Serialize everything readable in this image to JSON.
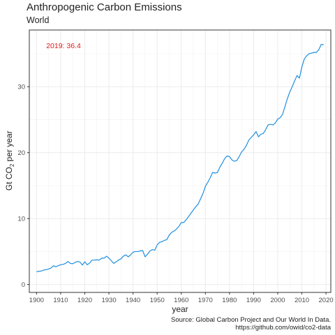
{
  "chart_data": {
    "type": "line",
    "title": "Anthropogenic Carbon Emissions",
    "subtitle": "World",
    "xlabel": "year",
    "ylabel_main": "Gt CO",
    "ylabel_sub": "2",
    "ylabel_rest": " per year",
    "xlim": [
      1897,
      2022
    ],
    "ylim": [
      -1.2,
      38.6
    ],
    "x_ticks": [
      1900,
      1910,
      1920,
      1930,
      1940,
      1950,
      1960,
      1970,
      1980,
      1990,
      2000,
      2010,
      2020
    ],
    "y_ticks": [
      0,
      10,
      20,
      30
    ],
    "grid": true,
    "line_color": "#1f8fe0",
    "annotation": {
      "text": "2019: 36.4",
      "x": 1904,
      "y": 36.2,
      "color": "#e41a1c"
    },
    "caption_line1": "Source: Global Carbon Project and Our World In Data.",
    "caption_line2": "https://github.com/owid/co2-data",
    "series": [
      {
        "x": [
          1900,
          1901,
          1902,
          1903,
          1904,
          1905,
          1906,
          1907,
          1908,
          1909,
          1910,
          1911,
          1912,
          1913,
          1914,
          1915,
          1916,
          1917,
          1918,
          1919,
          1920,
          1921,
          1922,
          1923,
          1924,
          1925,
          1926,
          1927,
          1928,
          1929,
          1930,
          1931,
          1932,
          1933,
          1934,
          1935,
          1936,
          1937,
          1938,
          1939,
          1940,
          1941,
          1942,
          1943,
          1944,
          1945,
          1946,
          1947,
          1948,
          1949,
          1950,
          1951,
          1952,
          1953,
          1954,
          1955,
          1956,
          1957,
          1958,
          1959,
          1960,
          1961,
          1962,
          1963,
          1964,
          1965,
          1966,
          1967,
          1968,
          1969,
          1970,
          1971,
          1972,
          1973,
          1974,
          1975,
          1976,
          1977,
          1978,
          1979,
          1980,
          1981,
          1982,
          1983,
          1984,
          1985,
          1986,
          1987,
          1988,
          1989,
          1990,
          1991,
          1992,
          1993,
          1994,
          1995,
          1996,
          1997,
          1998,
          1999,
          2000,
          2001,
          2002,
          2003,
          2004,
          2005,
          2006,
          2007,
          2008,
          2009,
          2010,
          2011,
          2012,
          2013,
          2014,
          2015,
          2016,
          2017,
          2018,
          2019
        ],
        "values": [
          1.95,
          2.0,
          2.05,
          2.2,
          2.25,
          2.35,
          2.5,
          2.85,
          2.7,
          2.85,
          3.0,
          3.05,
          3.2,
          3.5,
          3.2,
          3.15,
          3.35,
          3.5,
          3.4,
          2.95,
          3.45,
          3.0,
          3.25,
          3.7,
          3.7,
          3.75,
          3.7,
          4.0,
          4.0,
          4.3,
          4.0,
          3.6,
          3.2,
          3.45,
          3.7,
          3.9,
          4.3,
          4.5,
          4.2,
          4.5,
          4.9,
          5.0,
          5.0,
          5.1,
          5.15,
          4.2,
          4.6,
          5.1,
          5.3,
          5.2,
          6.0,
          6.4,
          6.5,
          6.7,
          6.8,
          7.5,
          7.9,
          8.1,
          8.4,
          8.8,
          9.4,
          9.4,
          9.8,
          10.3,
          10.8,
          11.3,
          11.8,
          12.2,
          13.0,
          13.8,
          14.9,
          15.5,
          16.2,
          17.0,
          16.9,
          17.0,
          17.8,
          18.4,
          19.1,
          19.5,
          19.4,
          18.9,
          18.7,
          18.8,
          19.4,
          20.1,
          20.5,
          21.1,
          21.9,
          22.3,
          22.7,
          23.2,
          22.4,
          22.8,
          22.9,
          23.5,
          24.2,
          24.3,
          24.2,
          24.5,
          25.1,
          25.3,
          25.8,
          27.0,
          28.2,
          29.2,
          30.0,
          30.9,
          31.7,
          31.3,
          33.0,
          34.2,
          34.7,
          35.0,
          35.1,
          35.2,
          35.2,
          35.6,
          36.4,
          36.4
        ]
      }
    ]
  }
}
